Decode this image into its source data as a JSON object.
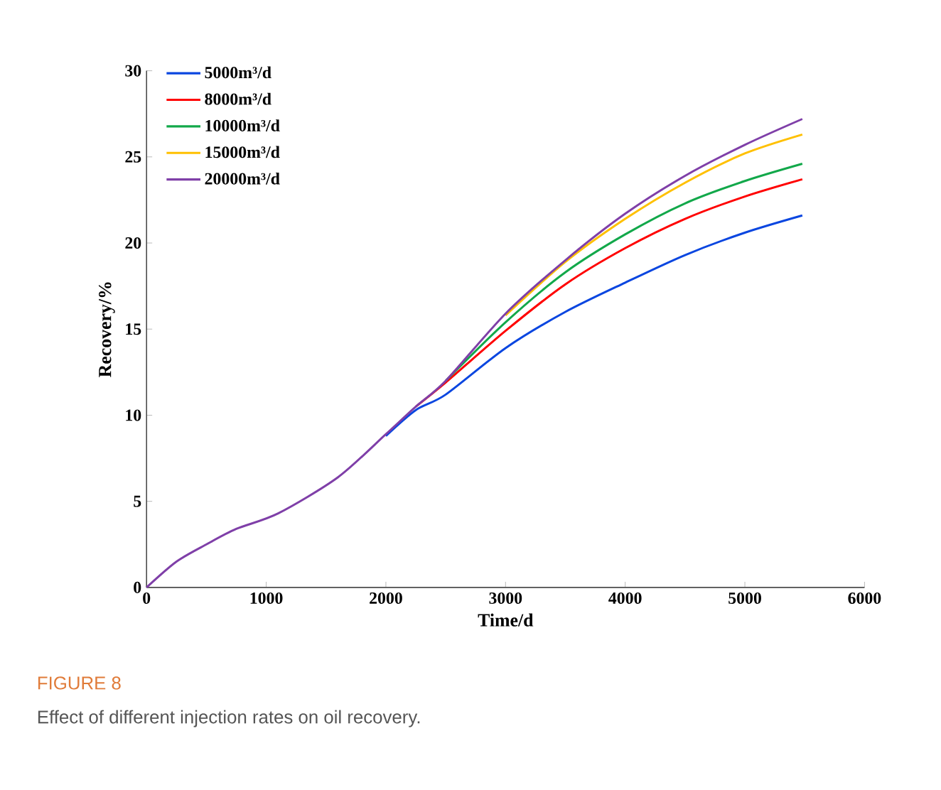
{
  "chart_data": {
    "type": "line",
    "xlabel": "Time/d",
    "ylabel": "Recovery/%",
    "xlim": [
      0,
      6000
    ],
    "xticks": [
      0,
      1000,
      2000,
      3000,
      4000,
      5000,
      6000
    ],
    "ylim": [
      0,
      30
    ],
    "yticks": [
      0,
      5,
      10,
      15,
      20,
      25,
      30
    ],
    "legend": "top left",
    "grid": false,
    "marker": "none",
    "line_style": "solid",
    "x": [
      0,
      250,
      500,
      750,
      1100,
      1600,
      2000,
      2250,
      2500,
      3000,
      3500,
      4000,
      4500,
      5000,
      5480
    ],
    "series": [
      {
        "name": "5000m³/d",
        "color": "#0a46e0",
        "values": [
          null,
          null,
          null,
          null,
          null,
          null,
          8.8,
          10.3,
          11.2,
          13.9,
          16.0,
          17.7,
          19.3,
          20.6,
          21.6
        ]
      },
      {
        "name": "8000m³/d",
        "color": "#ff0000",
        "values": [
          null,
          null,
          null,
          null,
          null,
          null,
          null,
          10.5,
          11.9,
          14.9,
          17.6,
          19.7,
          21.4,
          22.7,
          23.7
        ]
      },
      {
        "name": "10000m³/d",
        "color": "#12a84a",
        "values": [
          null,
          null,
          null,
          null,
          null,
          null,
          null,
          null,
          12.0,
          15.4,
          18.3,
          20.5,
          22.3,
          23.6,
          24.6
        ]
      },
      {
        "name": "15000m³/d",
        "color": "#ffc000",
        "values": [
          null,
          null,
          null,
          null,
          null,
          null,
          null,
          null,
          null,
          15.8,
          18.9,
          21.4,
          23.5,
          25.2,
          26.3
        ]
      },
      {
        "name": "20000m³/d",
        "color": "#7f3fa8",
        "values": [
          0,
          1.5,
          2.5,
          3.4,
          4.3,
          6.4,
          8.9,
          10.5,
          12.0,
          15.9,
          19.0,
          21.7,
          23.9,
          25.7,
          27.2
        ]
      }
    ],
    "annotations": [
      "FIGURE 8",
      "Effect of different injection rates on oil recovery."
    ]
  }
}
